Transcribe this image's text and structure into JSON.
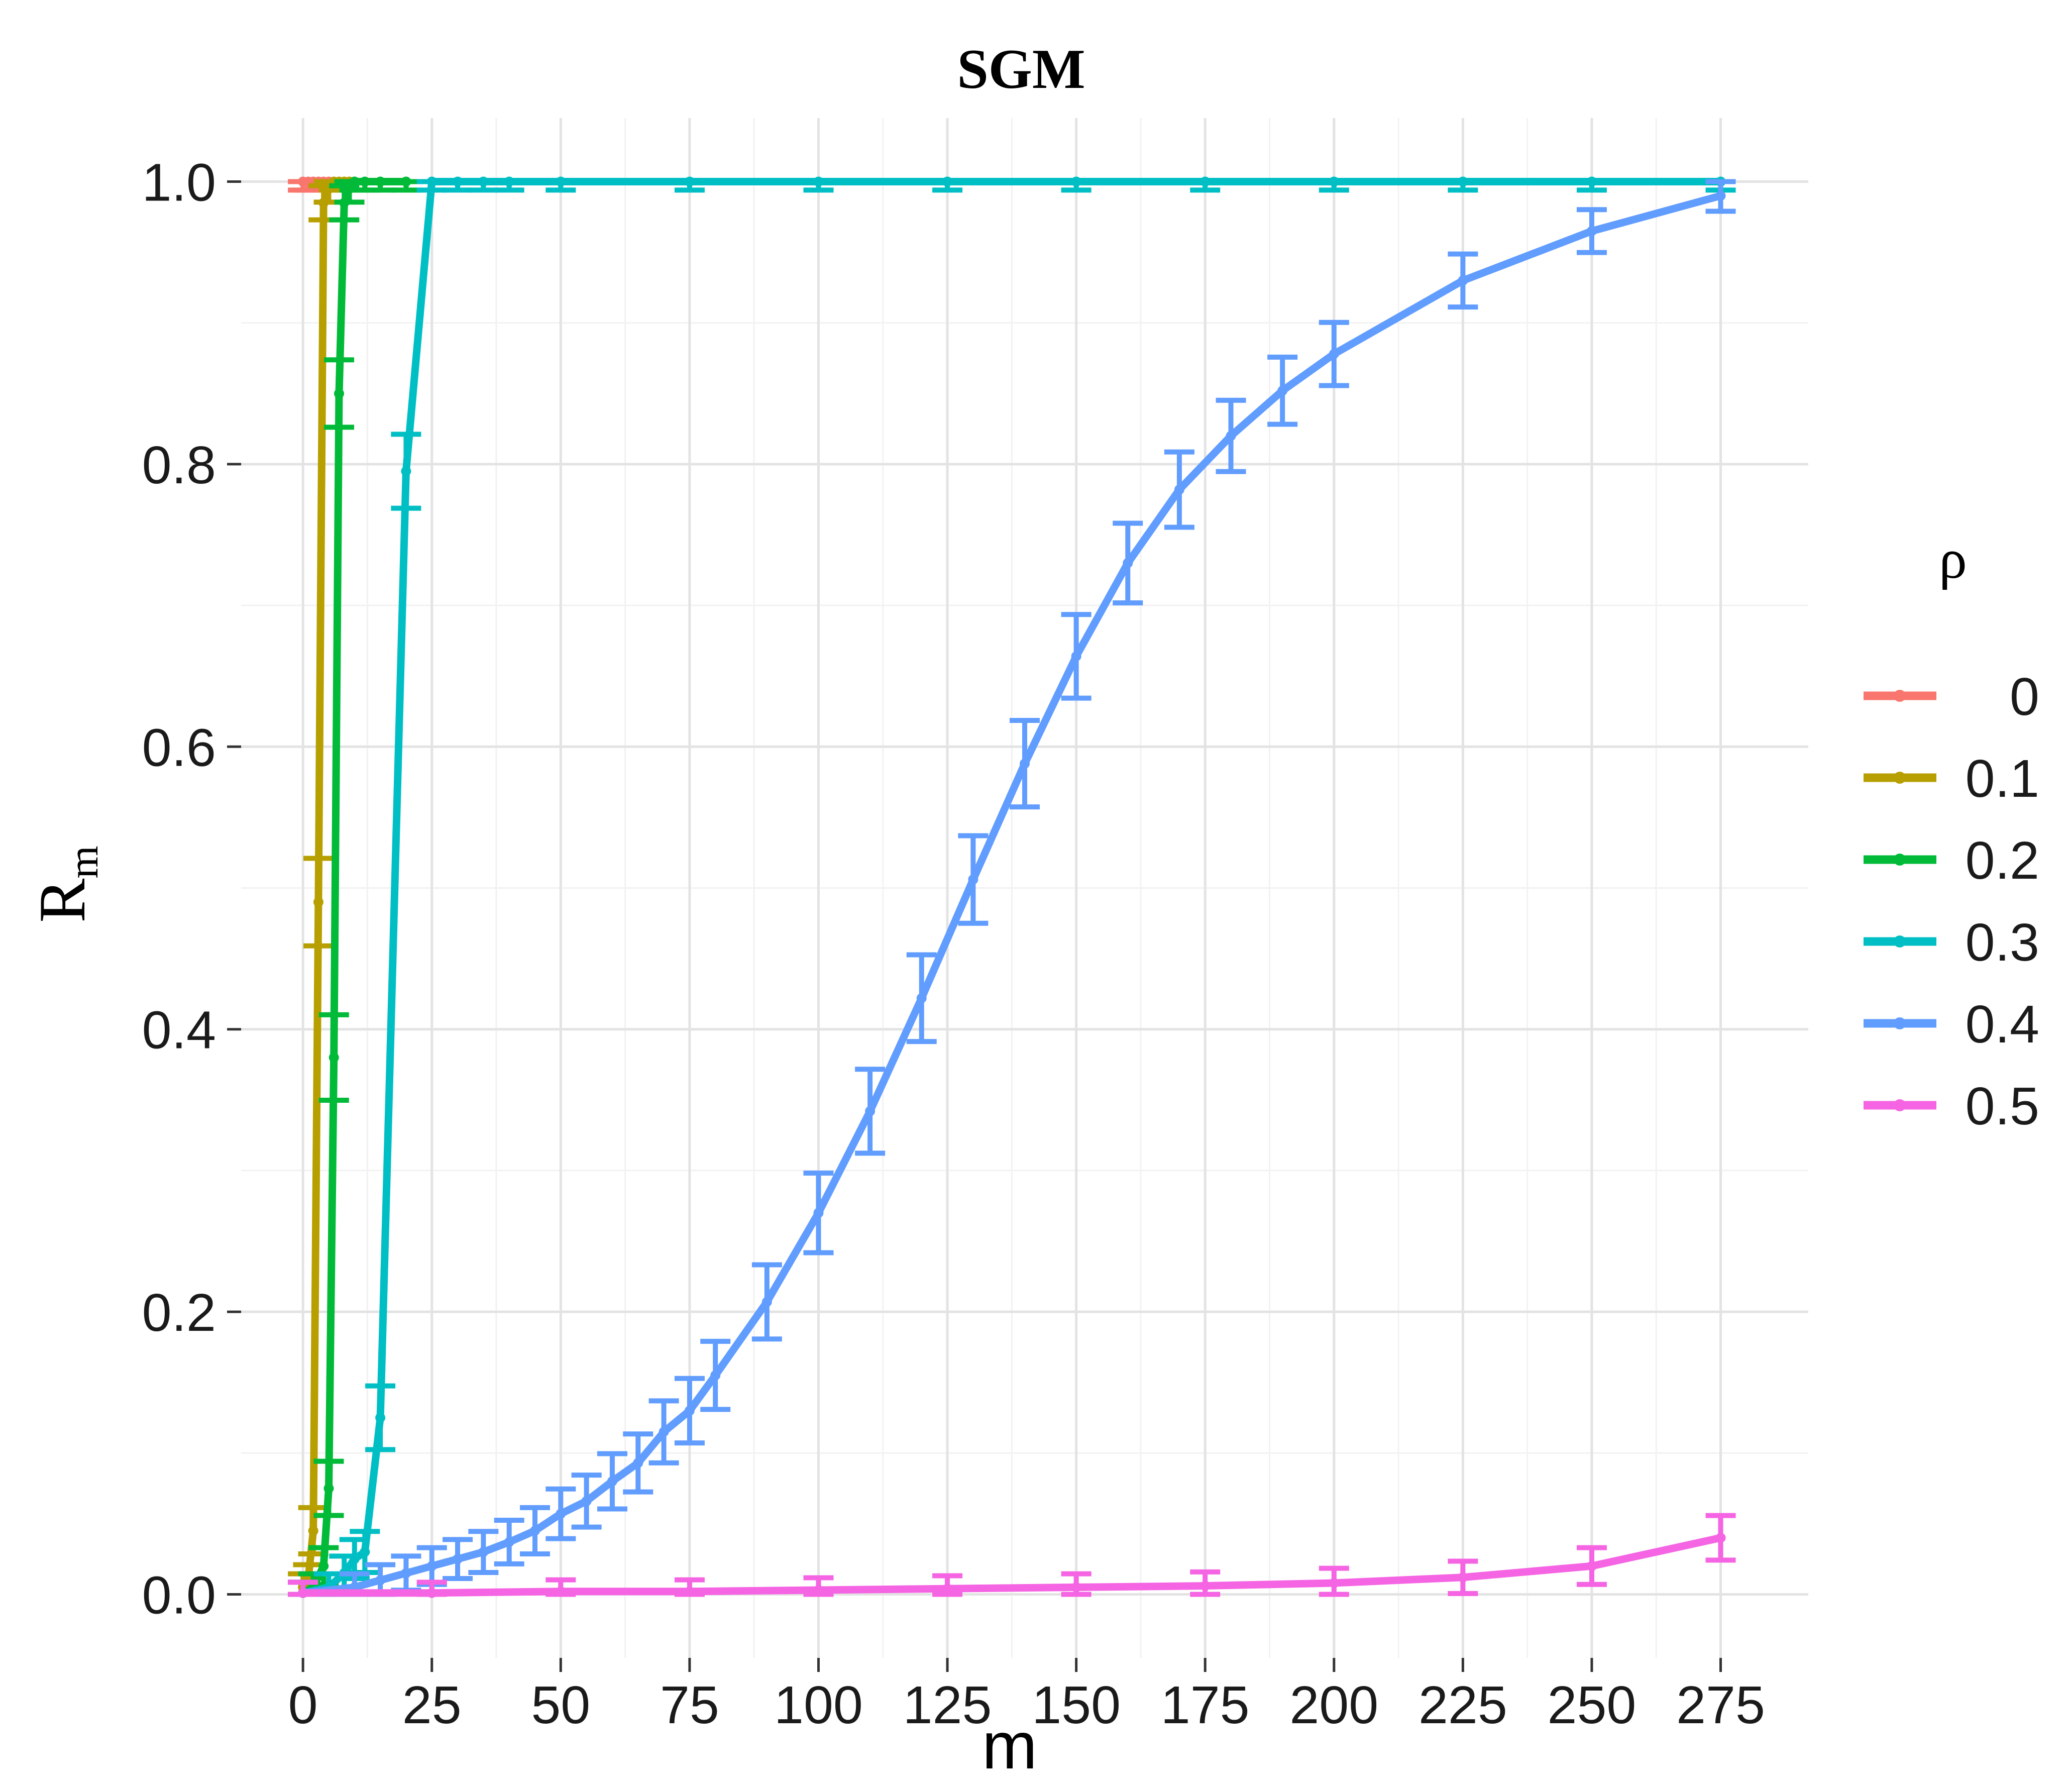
{
  "chart_data": {
    "type": "line",
    "title": "SGM",
    "xlabel": "m",
    "ylabel": "R",
    "ylabel_sub": "m",
    "xlim": [
      -12,
      292
    ],
    "ylim": [
      -0.045,
      1.045
    ],
    "x_ticks": [
      0,
      25,
      50,
      75,
      100,
      125,
      150,
      175,
      200,
      225,
      250,
      275
    ],
    "x_tick_labels": [
      "0",
      "25",
      "50",
      "75",
      "100",
      "125",
      "150",
      "175",
      "200",
      "225",
      "250",
      "275"
    ],
    "y_ticks": [
      0,
      0.2,
      0.4,
      0.6,
      0.8,
      1.0
    ],
    "y_tick_labels": [
      "0.0",
      "0.2",
      "0.4",
      "0.6",
      "0.8",
      "1.0"
    ],
    "grid": true,
    "error_bars": true,
    "legend_title": "ρ",
    "legend_position": "right",
    "series": [
      {
        "name": "0",
        "color": "#F8766D",
        "points": [
          [
            0,
            1.0
          ],
          [
            1,
            1.0
          ],
          [
            2,
            1.0
          ],
          [
            3,
            1.0
          ],
          [
            4,
            1.0
          ],
          [
            5,
            1.0
          ]
        ]
      },
      {
        "name": "0.1",
        "color": "#B79F00",
        "points": [
          [
            0,
            0.005
          ],
          [
            1,
            0.01
          ],
          [
            2,
            0.045
          ],
          [
            3,
            0.49
          ],
          [
            4,
            0.985
          ],
          [
            5,
            0.995
          ],
          [
            6,
            1.0
          ],
          [
            7,
            1.0
          ],
          [
            8,
            1.0
          ],
          [
            9,
            1.0
          ],
          [
            10,
            1.0
          ]
        ]
      },
      {
        "name": "0.2",
        "color": "#00BA38",
        "points": [
          [
            0,
            0.001
          ],
          [
            2,
            0.005
          ],
          [
            4,
            0.02
          ],
          [
            5,
            0.075
          ],
          [
            6,
            0.38
          ],
          [
            7,
            0.85
          ],
          [
            8,
            0.985
          ],
          [
            9,
            0.995
          ],
          [
            10,
            1.0
          ],
          [
            12,
            1.0
          ],
          [
            15,
            1.0
          ],
          [
            20,
            1.0
          ]
        ]
      },
      {
        "name": "0.3",
        "color": "#00BFC4",
        "points": [
          [
            0,
            0.001
          ],
          [
            5,
            0.005
          ],
          [
            8,
            0.015
          ],
          [
            10,
            0.025
          ],
          [
            12,
            0.03
          ],
          [
            15,
            0.125
          ],
          [
            20,
            0.795
          ],
          [
            25,
            1.0
          ],
          [
            30,
            1.0
          ],
          [
            35,
            1.0
          ],
          [
            40,
            1.0
          ],
          [
            50,
            1.0
          ],
          [
            75,
            1.0
          ],
          [
            100,
            1.0
          ],
          [
            125,
            1.0
          ],
          [
            150,
            1.0
          ],
          [
            175,
            1.0
          ],
          [
            200,
            1.0
          ],
          [
            225,
            1.0
          ],
          [
            250,
            1.0
          ],
          [
            275,
            1.0
          ]
        ]
      },
      {
        "name": "0.4",
        "color": "#619CFF",
        "points": [
          [
            0,
            0.001
          ],
          [
            10,
            0.005
          ],
          [
            15,
            0.01
          ],
          [
            20,
            0.015
          ],
          [
            25,
            0.02
          ],
          [
            30,
            0.025
          ],
          [
            35,
            0.03
          ],
          [
            40,
            0.037
          ],
          [
            45,
            0.045
          ],
          [
            50,
            0.057
          ],
          [
            55,
            0.066
          ],
          [
            60,
            0.08
          ],
          [
            65,
            0.093
          ],
          [
            70,
            0.115
          ],
          [
            75,
            0.13
          ],
          [
            80,
            0.155
          ],
          [
            90,
            0.207
          ],
          [
            100,
            0.27
          ],
          [
            110,
            0.342
          ],
          [
            120,
            0.422
          ],
          [
            130,
            0.506
          ],
          [
            140,
            0.588
          ],
          [
            150,
            0.664
          ],
          [
            160,
            0.73
          ],
          [
            170,
            0.782
          ],
          [
            180,
            0.82
          ],
          [
            190,
            0.852
          ],
          [
            200,
            0.878
          ],
          [
            225,
            0.93
          ],
          [
            250,
            0.965
          ],
          [
            275,
            0.99
          ]
        ]
      },
      {
        "name": "0.5",
        "color": "#F564E3",
        "points": [
          [
            0,
            0.001
          ],
          [
            25,
            0.001
          ],
          [
            50,
            0.002
          ],
          [
            75,
            0.002
          ],
          [
            100,
            0.003
          ],
          [
            125,
            0.004
          ],
          [
            150,
            0.005
          ],
          [
            175,
            0.006
          ],
          [
            200,
            0.008
          ],
          [
            225,
            0.012
          ],
          [
            250,
            0.02
          ],
          [
            275,
            0.04
          ]
        ]
      }
    ]
  }
}
